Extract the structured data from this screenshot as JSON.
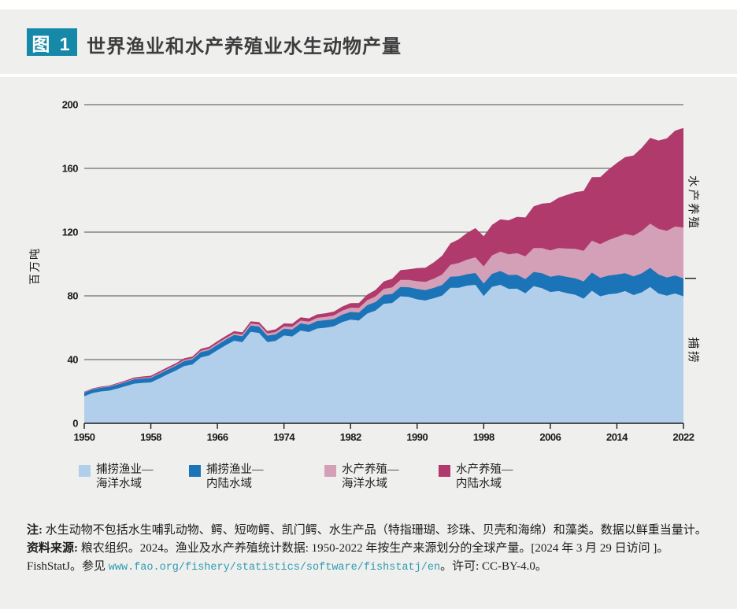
{
  "header": {
    "figure_badge": "图 1",
    "title": "世界渔业和水产养殖业水生动物产量"
  },
  "chart_data": {
    "type": "area",
    "stacked": true,
    "title": "世界渔业和水产养殖业水生动物产量",
    "ylabel": "百万吨",
    "xlabel": "",
    "ylim": [
      0,
      200
    ],
    "grid": true,
    "legend_position": "bottom",
    "yticks": [
      0,
      40,
      80,
      120,
      160,
      200
    ],
    "xticks": [
      1950,
      1958,
      1966,
      1974,
      1982,
      1990,
      1998,
      2006,
      2014,
      2022
    ],
    "years": [
      1950,
      1951,
      1952,
      1953,
      1954,
      1955,
      1956,
      1957,
      1958,
      1959,
      1960,
      1961,
      1962,
      1963,
      1964,
      1965,
      1966,
      1967,
      1968,
      1969,
      1970,
      1971,
      1972,
      1973,
      1974,
      1975,
      1976,
      1977,
      1978,
      1979,
      1980,
      1981,
      1982,
      1983,
      1984,
      1985,
      1986,
      1987,
      1988,
      1989,
      1990,
      1991,
      1992,
      1993,
      1994,
      1995,
      1996,
      1997,
      1998,
      1999,
      2000,
      2001,
      2002,
      2003,
      2004,
      2005,
      2006,
      2007,
      2008,
      2009,
      2010,
      2011,
      2012,
      2013,
      2014,
      2015,
      2016,
      2017,
      2018,
      2019,
      2020,
      2021,
      2022
    ],
    "series": [
      {
        "name": "捕捞渔业—海洋水域",
        "color": "#b1cfea",
        "values": [
          17.0,
          19.0,
          20.0,
          20.5,
          21.9,
          23.3,
          24.9,
          25.4,
          25.7,
          28.1,
          30.7,
          33.1,
          35.9,
          36.9,
          41.3,
          42.6,
          45.9,
          49.0,
          51.8,
          50.9,
          57.5,
          56.7,
          51.0,
          51.7,
          55.1,
          54.5,
          58.2,
          57.3,
          59.5,
          60.0,
          60.9,
          63.5,
          65.1,
          64.5,
          68.9,
          70.7,
          75.0,
          75.5,
          79.7,
          79.3,
          77.8,
          77.1,
          78.5,
          80.1,
          85.1,
          85.1,
          86.4,
          86.9,
          79.9,
          85.7,
          86.9,
          84.4,
          84.5,
          81.6,
          86.1,
          84.8,
          82.4,
          83.0,
          81.7,
          80.7,
          78.2,
          83.2,
          79.7,
          81.0,
          81.5,
          83.0,
          80.5,
          82.2,
          85.6,
          81.5,
          80.1,
          81.5,
          79.7
        ]
      },
      {
        "name": "捕捞渔业—内陆水域",
        "color": "#1c74b8",
        "values": [
          2.3,
          2.3,
          2.3,
          2.4,
          2.5,
          2.6,
          2.7,
          2.7,
          2.8,
          2.9,
          2.9,
          3.0,
          3.1,
          3.2,
          3.4,
          3.3,
          3.4,
          3.5,
          3.6,
          3.7,
          3.9,
          4.0,
          4.0,
          4.1,
          4.2,
          4.4,
          4.5,
          4.6,
          4.7,
          4.7,
          4.5,
          4.7,
          4.8,
          5.0,
          5.2,
          5.4,
          5.6,
          5.7,
          5.9,
          6.1,
          6.5,
          6.5,
          6.5,
          6.7,
          6.9,
          7.2,
          7.2,
          7.4,
          7.8,
          8.1,
          8.7,
          8.7,
          8.7,
          8.9,
          8.9,
          9.4,
          9.6,
          9.9,
          10.2,
          10.3,
          10.9,
          11.4,
          11.6,
          11.7,
          11.9,
          11.2,
          11.7,
          11.9,
          12.0,
          12.0,
          11.4,
          11.3,
          11.3
        ]
      },
      {
        "name": "水产养殖—海洋水域",
        "color": "#d3a0b7",
        "values": [
          0.3,
          0.3,
          0.3,
          0.35,
          0.4,
          0.4,
          0.45,
          0.5,
          0.5,
          0.55,
          0.6,
          0.65,
          0.7,
          0.75,
          0.8,
          0.9,
          0.95,
          1.0,
          1.05,
          1.1,
          1.2,
          1.3,
          1.4,
          1.5,
          1.6,
          1.7,
          1.8,
          1.9,
          2.0,
          2.1,
          2.3,
          2.5,
          2.7,
          2.9,
          3.2,
          3.5,
          3.8,
          4.1,
          4.4,
          4.6,
          4.9,
          5.2,
          5.8,
          6.6,
          7.5,
          8.3,
          9.1,
          9.9,
          10.8,
          11.6,
          12.2,
          12.9,
          13.6,
          14.3,
          15.0,
          15.8,
          16.5,
          17.1,
          17.8,
          18.5,
          19.2,
          20.0,
          21.2,
          22.3,
          23.5,
          24.6,
          25.6,
          26.7,
          27.7,
          28.5,
          29.3,
          30.7,
          31.8
        ]
      },
      {
        "name": "水产养殖—内陆水域",
        "color": "#b13a6c",
        "values": [
          0.3,
          0.35,
          0.4,
          0.45,
          0.5,
          0.6,
          0.7,
          0.8,
          0.9,
          1.0,
          1.0,
          1.0,
          1.1,
          1.1,
          1.2,
          1.2,
          1.3,
          1.3,
          1.4,
          1.4,
          1.4,
          1.5,
          1.6,
          1.7,
          1.8,
          1.9,
          2.0,
          2.1,
          2.2,
          2.3,
          2.4,
          2.6,
          2.8,
          3.1,
          3.5,
          4.1,
          4.7,
          5.4,
          6.1,
          6.7,
          8.2,
          8.9,
          10.2,
          11.8,
          13.5,
          14.9,
          16.8,
          18.3,
          18.9,
          19.2,
          20.2,
          21.4,
          22.8,
          24.4,
          26.2,
          27.9,
          29.8,
          31.6,
          33.6,
          35.6,
          37.6,
          39.8,
          42.0,
          44.3,
          46.5,
          48.3,
          50.3,
          52.2,
          53.8,
          55.5,
          58.0,
          60.2,
          62.6
        ]
      }
    ],
    "right_annotations": {
      "aquaculture_label": "水产养殖",
      "capture_label": "捕捞"
    }
  },
  "legend": {
    "items": [
      {
        "label_line1": "捕捞渔业—",
        "label_line2": "海洋水域",
        "color": "#b1cfea"
      },
      {
        "label_line1": "捕捞渔业—",
        "label_line2": "内陆水域",
        "color": "#1c74b8"
      },
      {
        "label_line1": "水产养殖—",
        "label_line2": "海洋水域",
        "color": "#d3a0b7"
      },
      {
        "label_line1": "水产养殖—",
        "label_line2": "内陆水域",
        "color": "#b13a6c"
      }
    ]
  },
  "footnote": {
    "note_label": "注:",
    "note_text": " 水生动物不包括水生哺乳动物、鳄、短吻鳄、凯门鳄、水生产品（特指珊瑚、珍珠、贝壳和海绵）和藻类。数据以鲜重当量计。",
    "source_label": "资料来源:",
    "source_text": " 粮农组织。2024。渔业及水产养殖统计数据: 1950-2022 年按生产来源划分的全球产量。[2024 年 3 月 29 日访问 ]。",
    "line3_prefix": "FishStatJ。参见 ",
    "url": "www.fao.org/fishery/statistics/software/fishstatj/en",
    "line3_suffix": "。许可: CC-BY-4.0。"
  },
  "colors": {
    "background": "#efefee",
    "badge": "#1689a9",
    "grid": "#4d4d4d",
    "axis": "#1a1a1a",
    "url": "#2f9bb1"
  }
}
